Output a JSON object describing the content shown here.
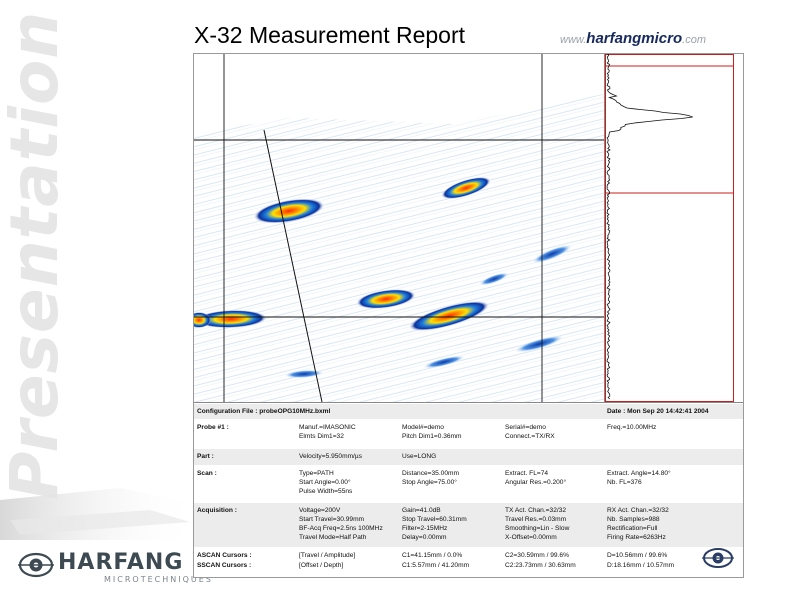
{
  "watermark": {
    "text": "Presentation"
  },
  "left_logo": {
    "name": "HARFANG",
    "tagline": "MICROTECHNIQUES"
  },
  "header": {
    "title": "X-32 Measurement Report",
    "brand_prefix": "www.",
    "brand_name": "harfangmicro",
    "brand_suffix": ".com"
  },
  "config": {
    "file_label": "Configuration File : probeOPG10MHz.bxml",
    "date_label": "Date : Mon Sep 20 14:42:41 2004"
  },
  "probe": {
    "label": "Probe #1 :",
    "manuf": "Manuf.=IMASONIC",
    "elmts": "Elmts Dim1=32",
    "model": "Model#=demo",
    "pitch": "Pitch Dim1=0.36mm",
    "serial": "Serial#=demo",
    "connect": "Connect.=TX/RX",
    "freq": "Freq.=10.00MHz"
  },
  "part": {
    "label": "Part :",
    "velocity": "Velocity=5.950mm/µs",
    "use": "Use=LONG"
  },
  "scan": {
    "label": "Scan :",
    "type": "Type=PATH",
    "start_angle": "Start Angle=0.00°",
    "pulse_width": "Pulse Width=55ns",
    "distance": "Distance=35.00mm",
    "stop_angle": "Stop Angle=75.00°",
    "extract_fl": "Extract. FL=74",
    "angular_res": "Angular Res.=0.200°",
    "extract_angle": "Extract. Angle=14.80°",
    "nb_fl": "Nb. FL=376"
  },
  "acquisition": {
    "label": "Acquisition :",
    "voltage": "Voltage=200V",
    "start_travel": "Start Travel=30.99mm",
    "bf_acq": "BF-Acq Freq=2.5ns 100MHz",
    "travel_mode": "Travel Mode=Half Path",
    "gain": "Gain=41.0dB",
    "stop_travel": "Stop Travel=60.31mm",
    "filter": "Filter=2-15MHz",
    "delay": "Delay=0.00mm",
    "tx_act": "TX Act. Chan.=32/32",
    "travel_res": "Travel Res.=0.03mm",
    "smoothing": "Smoothing=Lin - Slow",
    "x_offset": "X-Offset=0.00mm",
    "rx_act": "RX Act. Chan.=32/32",
    "nb_samples": "Nb. Samples=988",
    "rectification": "Rectification=Full",
    "firing_rate": "Firing Rate=6263Hz"
  },
  "cursors": {
    "ascan_label": "ASCAN Cursors :",
    "ascan_mode": "[Travel / Amplitude]",
    "ascan_c1": "C1=41.15mm / 0.0%",
    "ascan_c2": "C2=30.59mm / 99.6%",
    "ascan_d": "D=10.56mm / 99.6%",
    "sscan_label": "SSCAN Cursors :",
    "sscan_mode": "[Offset / Depth]",
    "sscan_c1": "C1:5.57mm / 41.20mm",
    "sscan_c2": "C2:23.73mm / 30.63mm",
    "sscan_d": "D:18.16mm / 10.57mm"
  },
  "colors": {
    "palette_hot": "#ff3300",
    "palette_mid": "#ffd400",
    "palette_low": "#2a6bd6",
    "cursor_red": "#c81e1e",
    "info_band": "#ececec"
  }
}
